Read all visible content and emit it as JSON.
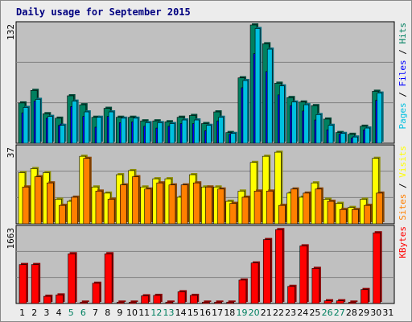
{
  "title": "Daily usage for September 2015",
  "colors": {
    "pages": "#00c0e0",
    "hits": "#008060",
    "files": "#0000ff",
    "visits": "#ffff00",
    "sites": "#ff8000",
    "kbytes": "#ff0000",
    "weekend": "#008060",
    "weekday": "#000000",
    "panel_bg": "#c0c0c0",
    "frame_bg": "#ececec"
  },
  "chart_data": [
    {
      "type": "bar",
      "panel": "hits-files-pages",
      "scale_label": "132",
      "ylim": [
        0,
        132
      ],
      "legend": [
        "Pages",
        "Files",
        "Hits"
      ],
      "categories": [
        "1",
        "2",
        "3",
        "4",
        "5",
        "6",
        "7",
        "8",
        "9",
        "10",
        "11",
        "12",
        "13",
        "14",
        "15",
        "16",
        "17",
        "18",
        "19",
        "20",
        "21",
        "22",
        "23",
        "24",
        "25",
        "26",
        "27",
        "28",
        "29",
        "30",
        "31"
      ],
      "series": [
        {
          "name": "Hits",
          "values": [
            45,
            59,
            33,
            28,
            53,
            43,
            29,
            39,
            29,
            29,
            25,
            25,
            24,
            29,
            31,
            22,
            35,
            12,
            73,
            132,
            111,
            67,
            51,
            46,
            42,
            27,
            12,
            10,
            19,
            58,
            0
          ]
        },
        {
          "name": "Files",
          "values": [
            34,
            47,
            28,
            20,
            41,
            30,
            18,
            30,
            23,
            24,
            19,
            17,
            19,
            22,
            22,
            14,
            25,
            10,
            62,
            100,
            80,
            54,
            42,
            36,
            26,
            15,
            10,
            6,
            15,
            48,
            0
          ]
        },
        {
          "name": "Pages",
          "values": [
            40,
            49,
            30,
            20,
            47,
            35,
            29,
            35,
            28,
            28,
            23,
            23,
            22,
            26,
            26,
            20,
            29,
            11,
            70,
            128,
            105,
            64,
            46,
            43,
            32,
            20,
            11,
            7,
            17,
            56,
            0
          ]
        }
      ]
    },
    {
      "type": "bar",
      "panel": "visits-sites",
      "scale_label": "37",
      "ylim": [
        0,
        37
      ],
      "legend": [
        "Sites",
        "Visits"
      ],
      "categories": [
        "1",
        "2",
        "3",
        "4",
        "5",
        "6",
        "7",
        "8",
        "9",
        "10",
        "11",
        "12",
        "13",
        "14",
        "15",
        "16",
        "17",
        "18",
        "19",
        "20",
        "21",
        "22",
        "23",
        "24",
        "25",
        "26",
        "27",
        "28",
        "29",
        "30",
        "31"
      ],
      "series": [
        {
          "name": "Visits",
          "values": [
            25,
            27,
            25,
            12,
            11,
            33,
            18,
            15,
            24,
            26,
            18,
            22,
            22,
            13,
            24,
            18,
            18,
            11,
            16,
            30,
            33,
            35,
            15,
            13,
            20,
            12,
            10,
            8,
            12,
            32,
            0
          ]
        },
        {
          "name": "Sites",
          "values": [
            18,
            23,
            20,
            9,
            13,
            32,
            16,
            12,
            19,
            23,
            17,
            20,
            19,
            19,
            20,
            18,
            17,
            10,
            13,
            16,
            16,
            9,
            17,
            15,
            17,
            11,
            7,
            7,
            9,
            15,
            0
          ]
        }
      ]
    },
    {
      "type": "bar",
      "panel": "kbytes",
      "scale_label": "1663",
      "ylim": [
        0,
        1663
      ],
      "legend": [
        "KBytes"
      ],
      "categories": [
        "1",
        "2",
        "3",
        "4",
        "5",
        "6",
        "7",
        "8",
        "9",
        "10",
        "11",
        "12",
        "13",
        "14",
        "15",
        "16",
        "17",
        "18",
        "19",
        "20",
        "21",
        "22",
        "23",
        "24",
        "25",
        "26",
        "27",
        "28",
        "29",
        "30",
        "31"
      ],
      "series": [
        {
          "name": "KBytes",
          "values": [
            865,
            865,
            160,
            190,
            1104,
            30,
            450,
            1104,
            30,
            30,
            170,
            180,
            30,
            260,
            180,
            30,
            30,
            30,
            520,
            900,
            1420,
            1640,
            380,
            1280,
            780,
            60,
            60,
            30,
            310,
            1570,
            0
          ]
        }
      ]
    }
  ],
  "weekend_days": [
    5,
    6,
    12,
    13,
    19,
    20,
    26,
    27
  ]
}
